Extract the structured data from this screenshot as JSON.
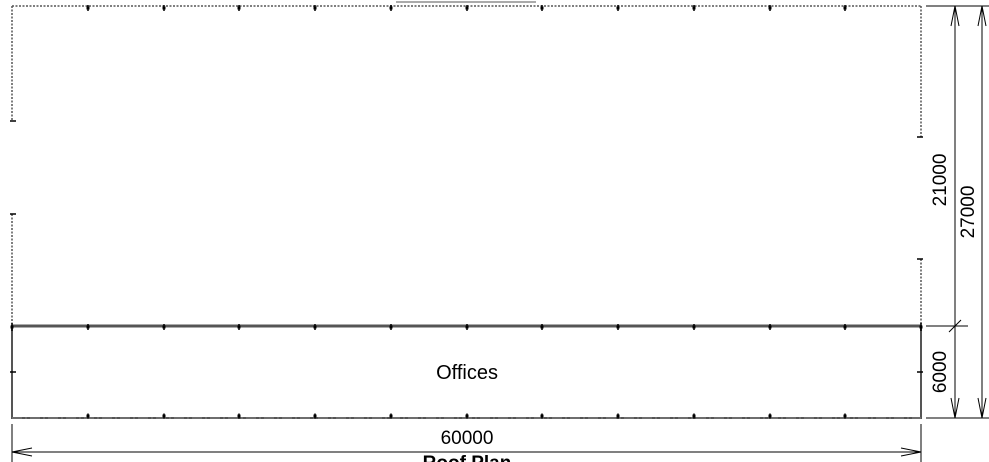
{
  "drawing": {
    "title": "Roof Plan",
    "room_label": "Offices",
    "dimensions": {
      "overall_width": "60000",
      "upper_depth": "21000",
      "overall_depth": "27000",
      "offices_depth": "6000"
    }
  },
  "colors": {
    "line": "#000000",
    "wall": "#555555",
    "background": "#ffffff"
  }
}
